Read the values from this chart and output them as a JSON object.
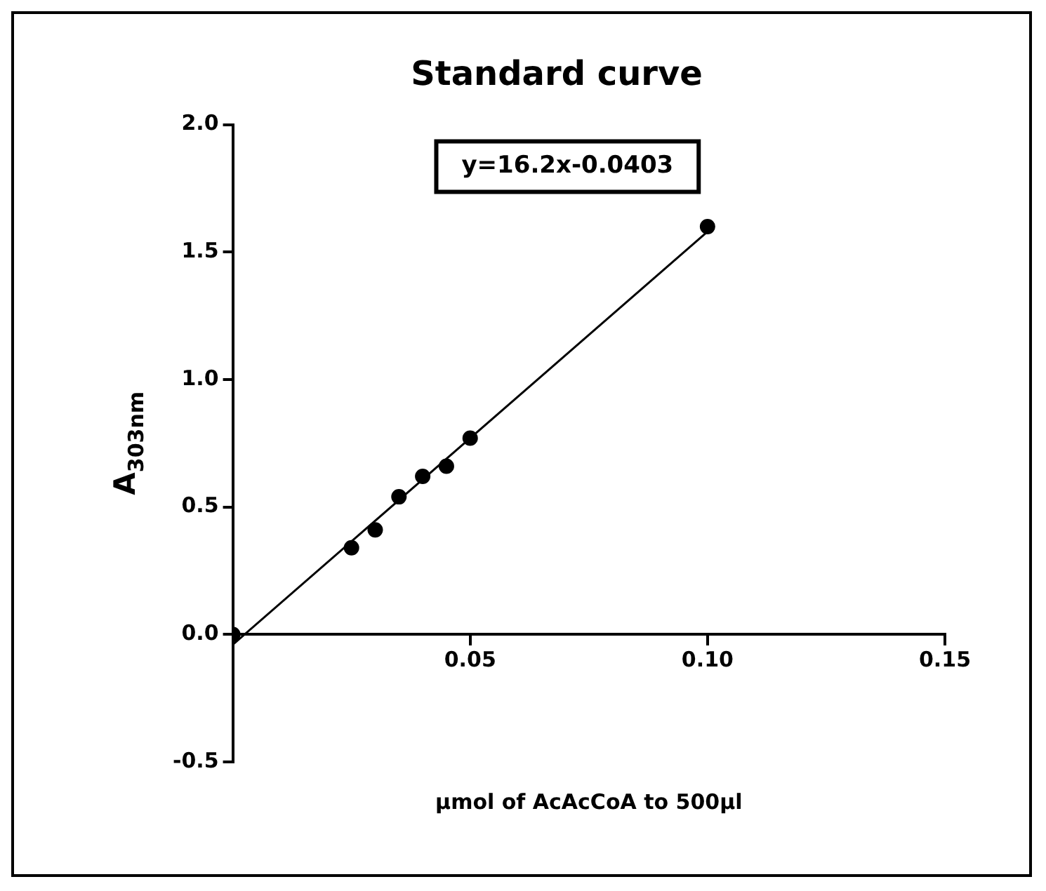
{
  "chart_data": {
    "type": "scatter",
    "title": "Standard curve",
    "xlabel": "µmol of AcAcCoA to 500µl",
    "ylabel": "A$_{303nm}$",
    "annotations": [
      "y=16.2x-0.0403"
    ],
    "x": [
      0,
      0.025,
      0.03,
      0.035,
      0.04,
      0.045,
      0.05,
      0.1
    ],
    "series": [
      {
        "color": "#000000",
        "marker": "circle",
        "values": [
          0,
          0.34,
          0.41,
          0.54,
          0.62,
          0.66,
          0.77,
          1.6
        ]
      },
      {
        "type": "line",
        "color": "#000000",
        "marker": "none",
        "x": [
          0,
          0.1
        ],
        "values": [
          -0.04,
          1.58
        ]
      }
    ],
    "xlim": [
      0,
      0.15
    ],
    "xticks": [
      0.05,
      {
        "value": 0.1,
        "label": "0.10"
      },
      0.15
    ],
    "ylim": [
      -0.5,
      2
    ],
    "yticks": [
      {
        "value": -0.5,
        "label": "-0.5"
      },
      {
        "value": 0,
        "label": "0.0"
      },
      {
        "value": 0.5,
        "label": "0.5"
      },
      {
        "value": 1,
        "label": "1.0"
      },
      {
        "value": 1.5,
        "label": "1.5"
      },
      {
        "value": 2,
        "label": "2.0"
      }
    ],
    "grid": false,
    "legend": false,
    "line_style": "solid"
  }
}
